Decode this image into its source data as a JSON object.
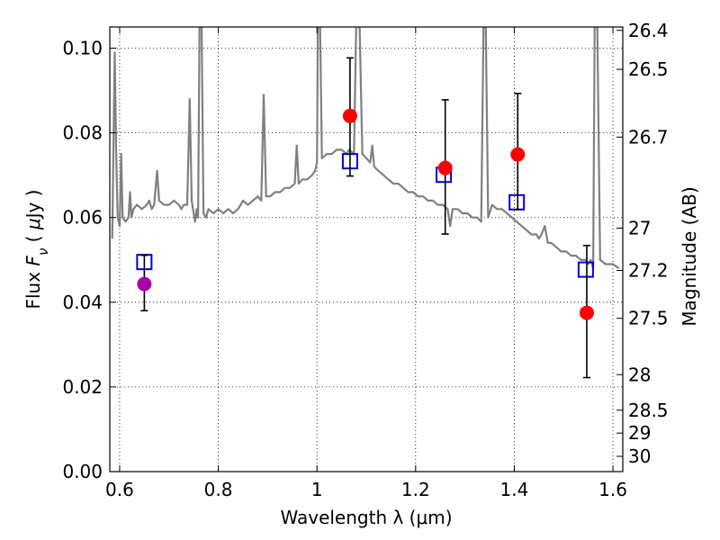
{
  "chart_data": {
    "type": "scatter",
    "xlabel": "Wavelength  λ (μm)",
    "ylabel": "Flux  F_ν  ( μJy )",
    "ylabel_right": "Magnitude (AB)",
    "xlim": [
      0.58,
      1.62
    ],
    "ylim": [
      0.0,
      0.105
    ],
    "grid": true,
    "x_ticks": [
      0.6,
      0.8,
      1.0,
      1.2,
      1.4,
      1.6
    ],
    "x_tick_labels": [
      "0.6",
      "0.8",
      "1",
      "1.2",
      "1.4",
      "1.6"
    ],
    "y_ticks": [
      0.0,
      0.02,
      0.04,
      0.06,
      0.08,
      0.1
    ],
    "y_tick_labels": [
      "0.00",
      "0.02",
      "0.04",
      "0.06",
      "0.08",
      "0.10"
    ],
    "mag_ticks": [
      {
        "flux": 0.1042,
        "label": "26.4"
      },
      {
        "flux": 0.095,
        "label": "26.5"
      },
      {
        "flux": 0.079,
        "label": "26.7"
      },
      {
        "flux": 0.0575,
        "label": "27"
      },
      {
        "flux": 0.0475,
        "label": "27.2"
      },
      {
        "flux": 0.0362,
        "label": "27.5"
      },
      {
        "flux": 0.0229,
        "label": "28"
      },
      {
        "flux": 0.0145,
        "label": "28.5"
      },
      {
        "flux": 0.0091,
        "label": "29"
      },
      {
        "flux": 0.0036,
        "label": "30"
      }
    ],
    "model_color": "#808080",
    "model_spectrum": [
      [
        0.585,
        0.055
      ],
      [
        0.59,
        0.099
      ],
      [
        0.593,
        0.075
      ],
      [
        0.596,
        0.06
      ],
      [
        0.6,
        0.058
      ],
      [
        0.603,
        0.075
      ],
      [
        0.606,
        0.06
      ],
      [
        0.612,
        0.059
      ],
      [
        0.618,
        0.06
      ],
      [
        0.621,
        0.066
      ],
      [
        0.624,
        0.06
      ],
      [
        0.628,
        0.062
      ],
      [
        0.635,
        0.063
      ],
      [
        0.645,
        0.062
      ],
      [
        0.655,
        0.063
      ],
      [
        0.66,
        0.064
      ],
      [
        0.665,
        0.062
      ],
      [
        0.67,
        0.063
      ],
      [
        0.676,
        0.071
      ],
      [
        0.68,
        0.064
      ],
      [
        0.69,
        0.063
      ],
      [
        0.7,
        0.063
      ],
      [
        0.71,
        0.064
      ],
      [
        0.72,
        0.063
      ],
      [
        0.725,
        0.062
      ],
      [
        0.73,
        0.063
      ],
      [
        0.737,
        0.063
      ],
      [
        0.742,
        0.088
      ],
      [
        0.746,
        0.064
      ],
      [
        0.75,
        0.061
      ],
      [
        0.753,
        0.059
      ],
      [
        0.756,
        0.062
      ],
      [
        0.759,
        0.06
      ],
      [
        0.762,
        0.108
      ],
      [
        0.766,
        0.108
      ],
      [
        0.77,
        0.061
      ],
      [
        0.775,
        0.06
      ],
      [
        0.78,
        0.062
      ],
      [
        0.79,
        0.061
      ],
      [
        0.8,
        0.062
      ],
      [
        0.81,
        0.061
      ],
      [
        0.82,
        0.062
      ],
      [
        0.83,
        0.061
      ],
      [
        0.84,
        0.062
      ],
      [
        0.85,
        0.064
      ],
      [
        0.86,
        0.063
      ],
      [
        0.87,
        0.064
      ],
      [
        0.88,
        0.065
      ],
      [
        0.887,
        0.064
      ],
      [
        0.892,
        0.089
      ],
      [
        0.897,
        0.065
      ],
      [
        0.905,
        0.065
      ],
      [
        0.915,
        0.066
      ],
      [
        0.925,
        0.066
      ],
      [
        0.935,
        0.067
      ],
      [
        0.945,
        0.067
      ],
      [
        0.955,
        0.068
      ],
      [
        0.959,
        0.077
      ],
      [
        0.963,
        0.068
      ],
      [
        0.97,
        0.069
      ],
      [
        0.98,
        0.069
      ],
      [
        0.99,
        0.07
      ],
      [
        0.996,
        0.071
      ],
      [
        1.0,
        0.073
      ],
      [
        1.002,
        0.108
      ],
      [
        1.006,
        0.108
      ],
      [
        1.01,
        0.074
      ],
      [
        1.02,
        0.075
      ],
      [
        1.03,
        0.075
      ],
      [
        1.04,
        0.076
      ],
      [
        1.05,
        0.076
      ],
      [
        1.06,
        0.075
      ],
      [
        1.065,
        0.076
      ],
      [
        1.075,
        0.075
      ],
      [
        1.08,
        0.108
      ],
      [
        1.086,
        0.108
      ],
      [
        1.092,
        0.075
      ],
      [
        1.1,
        0.074
      ],
      [
        1.108,
        0.073
      ],
      [
        1.112,
        0.077
      ],
      [
        1.116,
        0.072
      ],
      [
        1.125,
        0.071
      ],
      [
        1.135,
        0.07
      ],
      [
        1.145,
        0.069
      ],
      [
        1.155,
        0.068
      ],
      [
        1.165,
        0.068
      ],
      [
        1.175,
        0.067
      ],
      [
        1.185,
        0.066
      ],
      [
        1.195,
        0.066
      ],
      [
        1.205,
        0.065
      ],
      [
        1.215,
        0.065
      ],
      [
        1.225,
        0.064
      ],
      [
        1.235,
        0.064
      ],
      [
        1.245,
        0.063
      ],
      [
        1.255,
        0.063
      ],
      [
        1.265,
        0.062
      ],
      [
        1.27,
        0.058
      ],
      [
        1.275,
        0.062
      ],
      [
        1.285,
        0.062
      ],
      [
        1.295,
        0.061
      ],
      [
        1.305,
        0.061
      ],
      [
        1.315,
        0.06
      ],
      [
        1.325,
        0.06
      ],
      [
        1.333,
        0.059
      ],
      [
        1.338,
        0.108
      ],
      [
        1.342,
        0.108
      ],
      [
        1.347,
        0.06
      ],
      [
        1.355,
        0.063
      ],
      [
        1.365,
        0.062
      ],
      [
        1.375,
        0.062
      ],
      [
        1.385,
        0.061
      ],
      [
        1.395,
        0.06
      ],
      [
        1.405,
        0.059
      ],
      [
        1.415,
        0.058
      ],
      [
        1.425,
        0.057
      ],
      [
        1.435,
        0.056
      ],
      [
        1.445,
        0.056
      ],
      [
        1.45,
        0.055
      ],
      [
        1.455,
        0.056
      ],
      [
        1.462,
        0.058
      ],
      [
        1.468,
        0.054
      ],
      [
        1.475,
        0.054
      ],
      [
        1.485,
        0.053
      ],
      [
        1.495,
        0.052
      ],
      [
        1.505,
        0.052
      ],
      [
        1.515,
        0.051
      ],
      [
        1.525,
        0.051
      ],
      [
        1.535,
        0.05
      ],
      [
        1.545,
        0.05
      ],
      [
        1.55,
        0.049
      ],
      [
        1.555,
        0.05
      ],
      [
        1.56,
        0.048
      ],
      [
        1.563,
        0.108
      ],
      [
        1.568,
        0.108
      ],
      [
        1.574,
        0.05
      ],
      [
        1.585,
        0.049
      ],
      [
        1.6,
        0.049
      ],
      [
        1.612,
        0.048
      ]
    ],
    "series": [
      {
        "marker": "square-open",
        "color": "#0000dd",
        "points": [
          [
            0.65,
            0.0495
          ],
          [
            1.067,
            0.0733
          ],
          [
            1.257,
            0.0701
          ],
          [
            1.405,
            0.0636
          ],
          [
            1.545,
            0.0477
          ]
        ]
      },
      {
        "marker": "circle-filled",
        "color": "#ff0000",
        "points": [
          {
            "x": 1.067,
            "y": 0.084,
            "yerr_low": 0.0142,
            "yerr_high": 0.0137
          },
          {
            "x": 1.26,
            "y": 0.0717,
            "yerr_low": 0.0156,
            "yerr_high": 0.0161
          },
          {
            "x": 1.407,
            "y": 0.0749,
            "yerr_low": 0.013,
            "yerr_high": 0.0144
          },
          {
            "x": 1.547,
            "y": 0.0375,
            "yerr_low": 0.0153,
            "yerr_high": 0.0159
          }
        ]
      },
      {
        "marker": "circle-filled",
        "color": "#aa00aa",
        "points": [
          {
            "x": 0.65,
            "y": 0.0443,
            "yerr_low": 0.0063,
            "yerr_high": 0.0068
          }
        ]
      }
    ]
  }
}
